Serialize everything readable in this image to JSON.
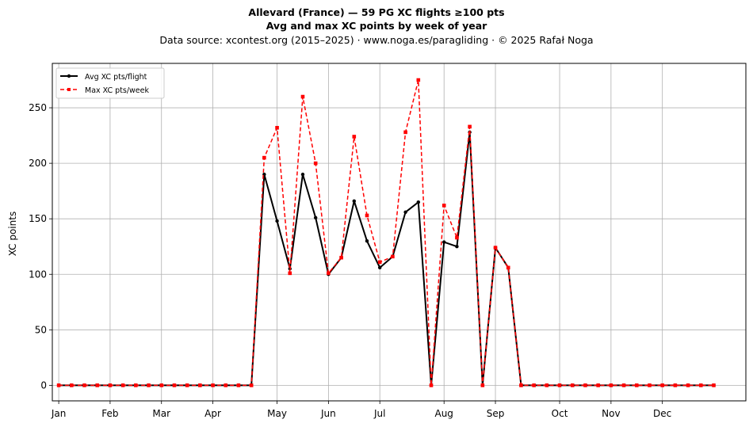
{
  "chart_data": {
    "type": "line",
    "title_line1": "Allevard (France)  —  59 PG XC flights ≥100 pts",
    "title_line2": "Avg and max XC points by week of year",
    "subtitle": "Data source: xcontest.org (2015–2025)  ·  www.noga.es/paragliding  ·  © 2025 Rafał Noga",
    "xlabel": "",
    "ylabel": "XC points",
    "xlim": [
      0.5,
      54.5
    ],
    "ylim": [
      -14,
      290
    ],
    "yticks": [
      0,
      50,
      100,
      150,
      200,
      250
    ],
    "xticks": [
      {
        "label": "Jan",
        "week": 1
      },
      {
        "label": "Feb",
        "week": 5
      },
      {
        "label": "Mar",
        "week": 9
      },
      {
        "label": "Apr",
        "week": 13
      },
      {
        "label": "May",
        "week": 18
      },
      {
        "label": "Jun",
        "week": 22
      },
      {
        "label": "Jul",
        "week": 26
      },
      {
        "label": "Aug",
        "week": 31
      },
      {
        "label": "Sep",
        "week": 35
      },
      {
        "label": "Oct",
        "week": 40
      },
      {
        "label": "Nov",
        "week": 44
      },
      {
        "label": "Dec",
        "week": 48
      }
    ],
    "grid": true,
    "legend_position": "top-left",
    "x": [
      1,
      2,
      3,
      4,
      5,
      6,
      7,
      8,
      9,
      10,
      11,
      12,
      13,
      14,
      15,
      16,
      17,
      18,
      19,
      20,
      21,
      22,
      23,
      24,
      25,
      26,
      27,
      28,
      29,
      30,
      31,
      32,
      33,
      34,
      35,
      36,
      37,
      38,
      39,
      40,
      41,
      42,
      43,
      44,
      45,
      46,
      47,
      48,
      49,
      50,
      51,
      52
    ],
    "series": [
      {
        "name": "Avg XC pts/flight",
        "color": "#000000",
        "style": "solid-circle",
        "values": [
          0,
          0,
          0,
          0,
          0,
          0,
          0,
          0,
          0,
          0,
          0,
          0,
          0,
          0,
          0,
          0,
          190,
          148,
          105,
          190,
          151,
          100,
          115,
          166,
          130,
          106,
          116,
          156,
          165,
          0,
          129,
          125,
          228,
          0,
          124,
          106,
          0,
          0,
          0,
          0,
          0,
          0,
          0,
          0,
          0,
          0,
          0,
          0,
          0,
          0,
          0,
          0
        ]
      },
      {
        "name": "Max XC pts/week",
        "color": "#ff0000",
        "style": "dashed-square",
        "values": [
          0,
          0,
          0,
          0,
          0,
          0,
          0,
          0,
          0,
          0,
          0,
          0,
          0,
          0,
          0,
          0,
          205,
          232,
          101,
          260,
          200,
          101,
          115,
          224,
          153,
          111,
          116,
          228,
          275,
          0,
          162,
          133,
          233,
          0,
          124,
          106,
          0,
          0,
          0,
          0,
          0,
          0,
          0,
          0,
          0,
          0,
          0,
          0,
          0,
          0,
          0,
          0
        ]
      }
    ]
  }
}
